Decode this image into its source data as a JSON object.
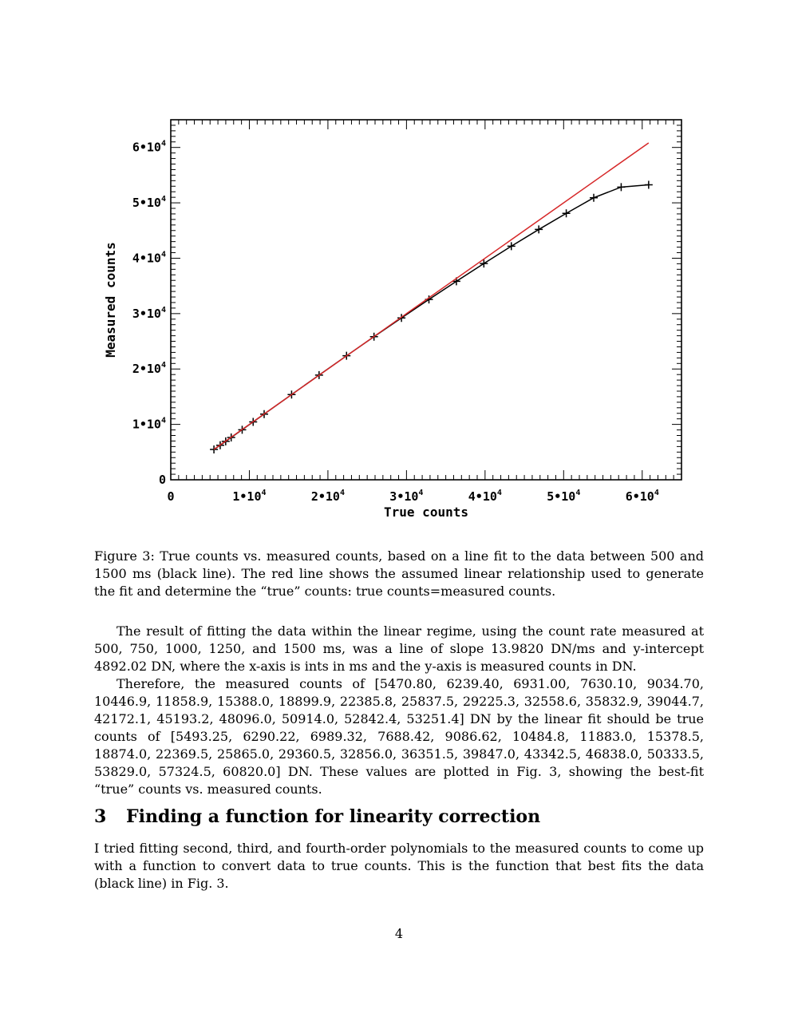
{
  "figure": {
    "caption": "Figure 3: True counts vs. measured counts, based on a line fit to the data between 500 and 1500 ms (black line). The red line shows the assumed linear relationship used to generate the fit and determine the “true” counts: true counts=measured counts."
  },
  "chart_data": {
    "type": "line",
    "title": "",
    "xlabel": "True counts",
    "ylabel": "Measured counts",
    "xlim": [
      0,
      65000
    ],
    "ylim": [
      0,
      65000
    ],
    "x_ticks": [
      0,
      10000,
      20000,
      30000,
      40000,
      50000,
      60000
    ],
    "y_ticks": [
      0,
      10000,
      20000,
      30000,
      40000,
      50000,
      60000
    ],
    "x_tick_labels": [
      {
        "base": "0",
        "exp": ""
      },
      {
        "base": "1•10",
        "exp": "4"
      },
      {
        "base": "2•10",
        "exp": "4"
      },
      {
        "base": "3•10",
        "exp": "4"
      },
      {
        "base": "4•10",
        "exp": "4"
      },
      {
        "base": "5•10",
        "exp": "4"
      },
      {
        "base": "6•10",
        "exp": "4"
      }
    ],
    "y_tick_labels": [
      {
        "base": "0",
        "exp": ""
      },
      {
        "base": "1•10",
        "exp": "4"
      },
      {
        "base": "2•10",
        "exp": "4"
      },
      {
        "base": "3•10",
        "exp": "4"
      },
      {
        "base": "4•10",
        "exp": "4"
      },
      {
        "base": "5•10",
        "exp": "4"
      },
      {
        "base": "6•10",
        "exp": "4"
      }
    ],
    "grid": false,
    "series": [
      {
        "color": "#000000",
        "marker": "plus",
        "x": [
          5493.25,
          6290.22,
          6989.32,
          7688.42,
          9086.62,
          10484.8,
          11883.0,
          15378.5,
          18874.0,
          22369.5,
          25865.0,
          29360.5,
          32856.0,
          36351.5,
          39847.0,
          43342.5,
          46838.0,
          50333.5,
          53829.0,
          57324.5,
          60820.0
        ],
        "y": [
          5470.8,
          6239.4,
          6931.0,
          7630.1,
          9034.7,
          10446.9,
          11858.9,
          15388.0,
          18899.9,
          22385.8,
          25837.5,
          29225.3,
          32558.6,
          35832.9,
          39044.7,
          42172.1,
          45193.2,
          48096.0,
          50914.0,
          52842.4,
          53251.4
        ]
      },
      {
        "color": "#d62728",
        "marker": "none",
        "x": [
          5493.25,
          60820.0
        ],
        "y": [
          5493.25,
          60820.0
        ]
      }
    ]
  },
  "body": {
    "para1": "The result of fitting the data within the linear regime, using the count rate measured at 500, 750, 1000, 1250, and 1500 ms, was a line of slope 13.9820 DN/ms and y-intercept 4892.02 DN, where the x-axis is ints in ms and the y-axis is measured counts in DN.",
    "para2": "Therefore, the measured counts of [5470.80, 6239.40, 6931.00, 7630.10, 9034.70, 10446.9, 11858.9, 15388.0, 18899.9, 22385.8, 25837.5, 29225.3, 32558.6, 35832.9, 39044.7, 42172.1, 45193.2, 48096.0, 50914.0, 52842.4, 53251.4] DN by the linear fit should be true counts of [5493.25, 6290.22, 6989.32, 7688.42, 9086.62, 10484.8, 11883.0, 15378.5, 18874.0, 22369.5, 25865.0, 29360.5, 32856.0, 36351.5, 39847.0, 43342.5, 46838.0, 50333.5, 53829.0, 57324.5, 60820.0] DN. These values are plotted in Fig. 3, showing the best-fit “true” counts vs. measured counts.",
    "section_number": "3",
    "section_title": "Finding a function for linearity correction",
    "para3": "I tried fitting second, third, and fourth-order polynomials to the measured counts to come up with a function to convert data to true counts. This is the function that best fits the data (black line) in Fig. 3."
  },
  "page_number": "4"
}
